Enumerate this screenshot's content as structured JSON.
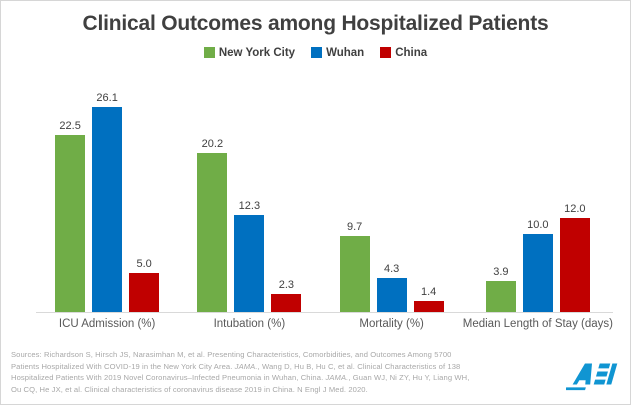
{
  "chart_data": {
    "type": "bar",
    "title": "Clinical Outcomes among Hospitalized Patients",
    "categories": [
      "ICU Admission (%)",
      "Intubation (%)",
      "Mortality (%)",
      "Median Length of Stay (days)"
    ],
    "series": [
      {
        "name": "New York City",
        "color": "#70AD47",
        "values": [
          22.5,
          20.2,
          9.7,
          3.9
        ]
      },
      {
        "name": "Wuhan",
        "color": "#0070C0",
        "values": [
          26.1,
          12.3,
          4.3,
          10.0
        ]
      },
      {
        "name": "China",
        "color": "#C00000",
        "values": [
          5.0,
          2.3,
          1.4,
          12.0
        ]
      }
    ],
    "ylim": [
      0,
      28
    ],
    "gridlines": false,
    "y_axis_visible": false,
    "data_labels": true,
    "data_label_format": "one-decimal",
    "legend_position": "top",
    "colors": {
      "title_text": "#404040",
      "category_text": "#595959",
      "baseline": "#D9D9D9"
    }
  },
  "sources": {
    "lines": [
      [
        {
          "text": "Sources: Richardson S, Hirsch JS, Narasimhan M, et al. Presenting Characteristics, Comorbidities, and Outcomes Among 5700",
          "italic": false
        }
      ],
      [
        {
          "text": "Patients Hospitalized With COVID-19 in the New York City Area. ",
          "italic": false
        },
        {
          "text": "JAMA.",
          "italic": true
        },
        {
          "text": ", Wang D, Hu B, Hu C, et al. Clinical Characteristics of 138",
          "italic": false
        }
      ],
      [
        {
          "text": "Hospitalized Patients With 2019 Novel Coronavirus–Infected Pneumonia in Wuhan, China. ",
          "italic": false
        },
        {
          "text": "JAMA.",
          "italic": true
        },
        {
          "text": ", Guan WJ, Ni ZY, Hu Y, Liang WH,",
          "italic": false
        }
      ],
      [
        {
          "text": "Ou CQ, He JX, et al. Clinical characteristics of coronavirus disease 2019 in China. N Engl J Med. 2020.",
          "italic": false
        }
      ]
    ],
    "text_color": "#A8A8A8"
  },
  "logo": {
    "name": "AEI",
    "color": "#1095D2"
  }
}
